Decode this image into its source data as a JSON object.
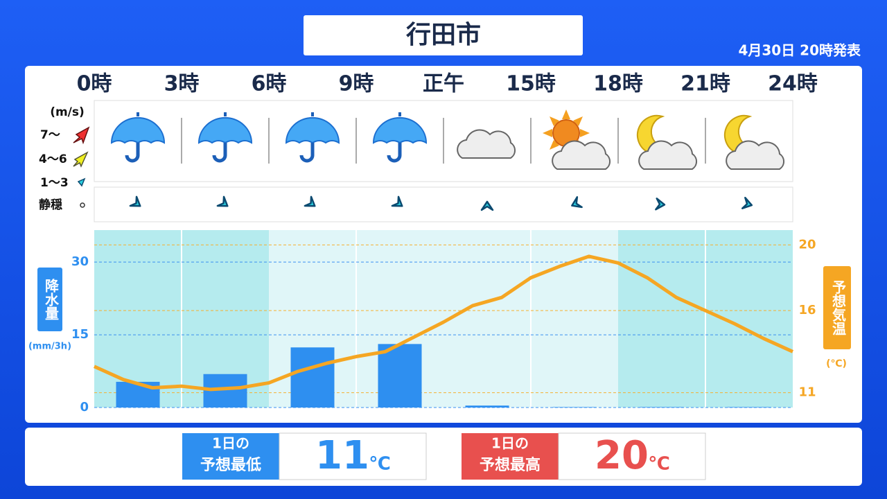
{
  "header": {
    "title": "行田市",
    "issued": "4月30日 20時発表"
  },
  "wind_legend": {
    "unit": "(m/s)",
    "levels": [
      "7〜",
      "4〜6",
      "1〜3",
      "静穏"
    ]
  },
  "chart_data": {
    "type": "bar",
    "xlim": [
      0,
      24
    ],
    "xticks": [
      {
        "value": 0,
        "label": "0時"
      },
      {
        "value": 3,
        "label": "3時"
      },
      {
        "value": 6,
        "label": "6時"
      },
      {
        "value": 9,
        "label": "9時"
      },
      {
        "value": 12,
        "label": "正午"
      },
      {
        "value": 15,
        "label": "15時"
      },
      {
        "value": 18,
        "label": "18時"
      },
      {
        "value": 21,
        "label": "21時"
      },
      {
        "value": 24,
        "label": "24時"
      }
    ],
    "ylabel": "降水量",
    "yunit": "(mm/3h)",
    "ylim": [
      0,
      36.6
    ],
    "yticks": [
      0,
      15,
      30
    ],
    "y2label": "予想気温",
    "y2unit": "(℃)",
    "y2lim": [
      10.1,
      20.9
    ],
    "y2ticks": [
      11,
      16,
      20
    ],
    "grid": true,
    "series": [
      {
        "type": "bar",
        "color": "#2e8ff0",
        "bins": [
          0,
          3,
          6,
          9,
          12,
          15,
          18,
          21,
          24
        ],
        "values": [
          5.3,
          6.9,
          12.4,
          13.1,
          0.4,
          0.1,
          0.1,
          0.1
        ]
      },
      {
        "type": "line",
        "axis": "y2",
        "color": "#f5a623",
        "x": [
          0,
          1,
          2,
          3,
          4,
          5,
          6,
          7,
          8,
          9,
          10,
          11,
          12,
          13,
          14,
          15,
          16,
          17,
          18,
          19,
          20,
          21,
          22,
          23,
          24
        ],
        "values": [
          12.6,
          11.8,
          11.3,
          11.4,
          11.2,
          11.3,
          11.6,
          12.3,
          12.8,
          13.2,
          13.5,
          14.4,
          15.3,
          16.3,
          16.8,
          18.0,
          18.7,
          19.3,
          18.9,
          18.0,
          16.8,
          16.0,
          15.2,
          14.3,
          13.5
        ]
      }
    ]
  },
  "summary": {
    "unit": "℃",
    "min_label": [
      "1日の",
      "予想最低"
    ],
    "min_value": 11,
    "max_label": [
      "1日の",
      "予想最高"
    ],
    "max_value": 20
  }
}
